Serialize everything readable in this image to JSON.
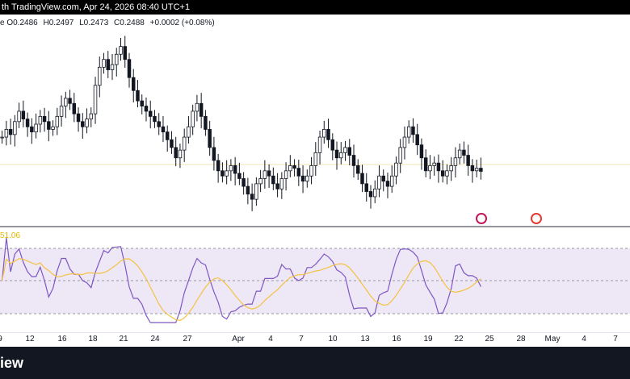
{
  "header": {
    "text": "th TradingView.com, Apr 24, 2026 08:40 UTC+1"
  },
  "ohlc": {
    "prefix": "e",
    "o_label": "O",
    "o": "0.2486",
    "h_label": "H",
    "h": "0.2497",
    "l_label": "L",
    "l": "0.2473",
    "c_label": "C",
    "c": "0.2488",
    "change": "+0.0002 (+0.08%)"
  },
  "rsi": {
    "value": "51.06"
  },
  "xaxis": [
    "9",
    "12",
    "16",
    "18",
    "21",
    "24",
    "27",
    "Apr",
    "4",
    "7",
    "10",
    "13",
    "16",
    "19",
    "22",
    "25",
    "28",
    "May",
    "4",
    "7"
  ],
  "footer": {
    "brand": "iew"
  },
  "icons": [
    "flash-event-icon",
    "us-flag-event-icon"
  ],
  "colors": {
    "candle": "#131722",
    "rsi_line": "#7e57c2",
    "rsi_ma": "#f5c242",
    "rsi_band": "#ede7f6",
    "footer_bg": "#131722"
  },
  "price_series": [
    0.262,
    0.265,
    0.263,
    0.268,
    0.272,
    0.269,
    0.266,
    0.264,
    0.267,
    0.27,
    0.268,
    0.265,
    0.266,
    0.27,
    0.274,
    0.277,
    0.275,
    0.271,
    0.268,
    0.266,
    0.269,
    0.271,
    0.282,
    0.289,
    0.292,
    0.288,
    0.29,
    0.294,
    0.297,
    0.292,
    0.285,
    0.28,
    0.276,
    0.274,
    0.272,
    0.27,
    0.268,
    0.266,
    0.264,
    0.261,
    0.258,
    0.254,
    0.257,
    0.262,
    0.266,
    0.272,
    0.275,
    0.27,
    0.265,
    0.258,
    0.253,
    0.249,
    0.247,
    0.249,
    0.251,
    0.248,
    0.246,
    0.243,
    0.24,
    0.238,
    0.244,
    0.246,
    0.249,
    0.247,
    0.244,
    0.242,
    0.246,
    0.249,
    0.251,
    0.25,
    0.247,
    0.245,
    0.247,
    0.251,
    0.256,
    0.262,
    0.265,
    0.261,
    0.257,
    0.254,
    0.256,
    0.258,
    0.255,
    0.251,
    0.248,
    0.244,
    0.241,
    0.239,
    0.242,
    0.247,
    0.245,
    0.243,
    0.247,
    0.252,
    0.258,
    0.262,
    0.266,
    0.263,
    0.259,
    0.254,
    0.249,
    0.251,
    0.252,
    0.249,
    0.247,
    0.249,
    0.251,
    0.254,
    0.257,
    0.255,
    0.251,
    0.249,
    0.25,
    0.2488
  ]
}
